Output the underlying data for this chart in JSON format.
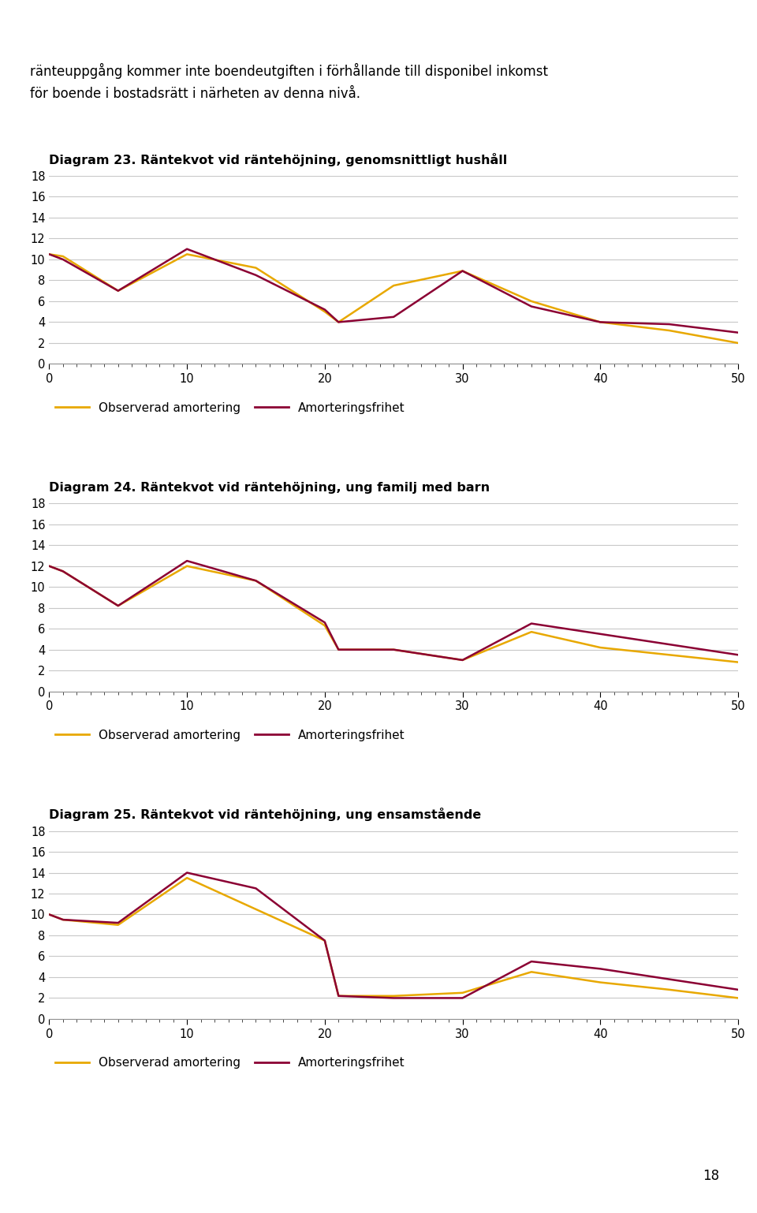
{
  "header_line1": "ränteuppgång kommer inte boendeutgiften i förhållande till disponibel inkomst",
  "header_line2": "för boende i bostadsrätt i närheten av denna nivå.",
  "title23": "Diagram 23. Räntekvot vid räntehöjning, genomsnittligt hushåll",
  "title24": "Diagram 24. Räntekvot vid räntehöjning, ung familj med barn",
  "title25": "Diagram 25. Räntekvot vid räntehöjning, ung ensamstående",
  "x23": [
    0,
    1,
    5,
    10,
    15,
    20,
    21,
    25,
    30,
    35,
    40,
    45,
    50
  ],
  "obs23": [
    10.5,
    10.3,
    7.0,
    10.5,
    9.2,
    5.0,
    4.0,
    7.5,
    8.9,
    6.0,
    4.0,
    3.2,
    2.0
  ],
  "amf23": [
    10.5,
    10.0,
    7.0,
    11.0,
    8.5,
    5.2,
    4.0,
    4.5,
    8.9,
    5.5,
    4.0,
    3.8,
    3.0
  ],
  "x24": [
    0,
    1,
    5,
    10,
    15,
    20,
    21,
    25,
    30,
    35,
    40,
    45,
    50
  ],
  "obs24": [
    12.0,
    11.5,
    8.2,
    12.0,
    10.6,
    6.3,
    4.0,
    4.0,
    3.0,
    5.7,
    4.2,
    3.5,
    2.8
  ],
  "amf24": [
    12.0,
    11.5,
    8.2,
    12.5,
    10.6,
    6.6,
    4.0,
    4.0,
    3.0,
    6.5,
    5.5,
    4.5,
    3.5
  ],
  "x25": [
    0,
    1,
    5,
    10,
    15,
    20,
    21,
    25,
    30,
    35,
    40,
    45,
    50
  ],
  "obs25": [
    10.0,
    9.5,
    9.0,
    13.5,
    10.5,
    7.5,
    2.2,
    2.2,
    2.5,
    4.5,
    3.5,
    2.8,
    2.0
  ],
  "amf25": [
    10.0,
    9.5,
    9.2,
    14.0,
    12.5,
    7.5,
    2.2,
    2.0,
    2.0,
    5.5,
    4.8,
    3.8,
    2.8
  ],
  "color_obs": "#E8A800",
  "color_amf": "#8B0033",
  "legend_obs": "Observerad amortering",
  "legend_amf": "Amorteringsfrihet",
  "ylim": [
    0,
    18
  ],
  "yticks": [
    0,
    2,
    4,
    6,
    8,
    10,
    12,
    14,
    16,
    18
  ],
  "xlim": [
    0,
    50
  ],
  "xticks": [
    0,
    10,
    20,
    30,
    40,
    50
  ],
  "page_number": "18",
  "background_color": "#ffffff",
  "grid_color": "#c8c8c8",
  "linewidth": 1.8
}
